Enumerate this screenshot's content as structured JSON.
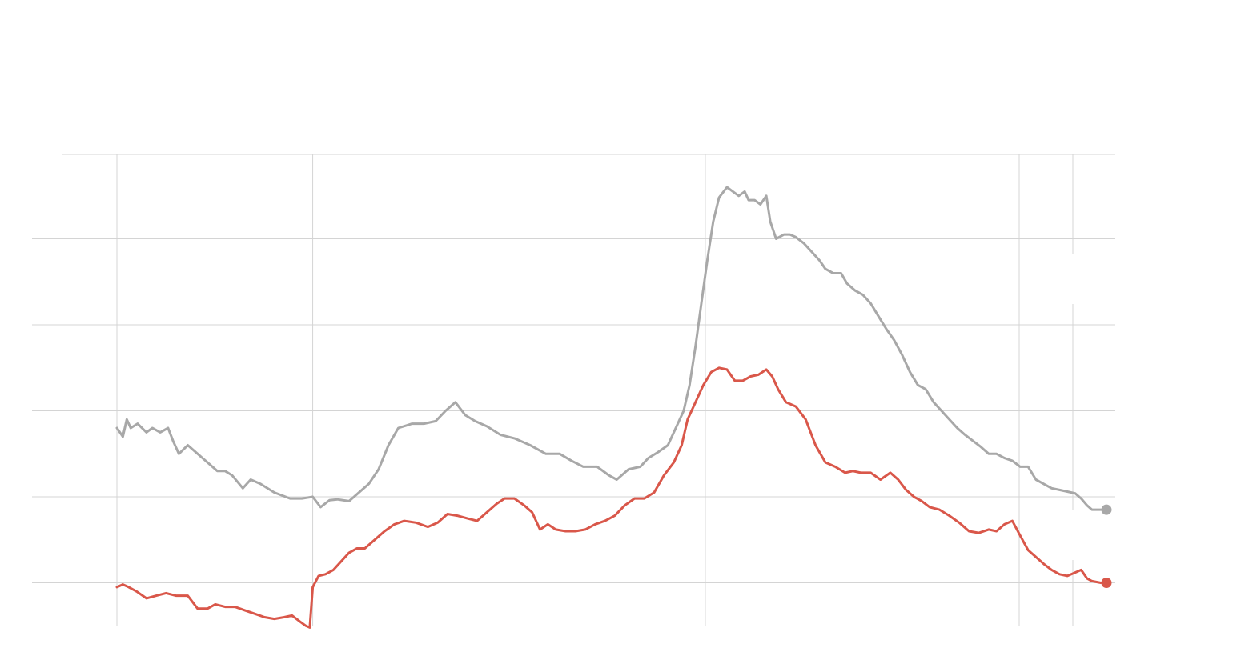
{
  "chart_data": {
    "type": "line",
    "title": "",
    "xlabel": "",
    "ylabel": "",
    "x_range": [
      0,
      1
    ],
    "ylim": [
      0,
      6
    ],
    "y_gridlines": [
      1,
      2,
      3,
      4,
      5
    ],
    "x_gridlines": [
      0.0,
      0.199,
      0.598,
      0.917
    ],
    "grid": true,
    "legend": "none",
    "colors": {
      "series_gray": "#a8a8a8",
      "series_red": "#d9574a",
      "gridline": "#d4d4d4",
      "background": "#ffffff"
    },
    "series": [
      {
        "color": "#a8a8a8",
        "end_marker": true,
        "points": [
          [
            0.0,
            2.8
          ],
          [
            0.006,
            2.7
          ],
          [
            0.01,
            2.9
          ],
          [
            0.014,
            2.8
          ],
          [
            0.021,
            2.85
          ],
          [
            0.03,
            2.75
          ],
          [
            0.036,
            2.8
          ],
          [
            0.044,
            2.75
          ],
          [
            0.052,
            2.8
          ],
          [
            0.057,
            2.65
          ],
          [
            0.063,
            2.5
          ],
          [
            0.072,
            2.6
          ],
          [
            0.082,
            2.5
          ],
          [
            0.092,
            2.4
          ],
          [
            0.102,
            2.3
          ],
          [
            0.11,
            2.3
          ],
          [
            0.117,
            2.25
          ],
          [
            0.128,
            2.1
          ],
          [
            0.136,
            2.2
          ],
          [
            0.146,
            2.15
          ],
          [
            0.16,
            2.05
          ],
          [
            0.176,
            1.98
          ],
          [
            0.188,
            1.98
          ],
          [
            0.199,
            2.0
          ],
          [
            0.207,
            1.88
          ],
          [
            0.216,
            1.96
          ],
          [
            0.224,
            1.97
          ],
          [
            0.236,
            1.95
          ],
          [
            0.246,
            2.05
          ],
          [
            0.256,
            2.15
          ],
          [
            0.266,
            2.32
          ],
          [
            0.276,
            2.6
          ],
          [
            0.286,
            2.8
          ],
          [
            0.3,
            2.85
          ],
          [
            0.312,
            2.85
          ],
          [
            0.324,
            2.88
          ],
          [
            0.334,
            3.0
          ],
          [
            0.344,
            3.1
          ],
          [
            0.354,
            2.95
          ],
          [
            0.364,
            2.88
          ],
          [
            0.376,
            2.82
          ],
          [
            0.39,
            2.72
          ],
          [
            0.404,
            2.68
          ],
          [
            0.42,
            2.6
          ],
          [
            0.436,
            2.5
          ],
          [
            0.45,
            2.5
          ],
          [
            0.462,
            2.42
          ],
          [
            0.474,
            2.35
          ],
          [
            0.488,
            2.35
          ],
          [
            0.5,
            2.25
          ],
          [
            0.508,
            2.2
          ],
          [
            0.52,
            2.32
          ],
          [
            0.532,
            2.35
          ],
          [
            0.54,
            2.45
          ],
          [
            0.55,
            2.52
          ],
          [
            0.56,
            2.6
          ],
          [
            0.568,
            2.8
          ],
          [
            0.576,
            3.0
          ],
          [
            0.582,
            3.3
          ],
          [
            0.588,
            3.75
          ],
          [
            0.594,
            4.25
          ],
          [
            0.6,
            4.75
          ],
          [
            0.606,
            5.2
          ],
          [
            0.612,
            5.48
          ],
          [
            0.62,
            5.6
          ],
          [
            0.626,
            5.55
          ],
          [
            0.632,
            5.5
          ],
          [
            0.638,
            5.55
          ],
          [
            0.642,
            5.45
          ],
          [
            0.648,
            5.45
          ],
          [
            0.654,
            5.4
          ],
          [
            0.66,
            5.5
          ],
          [
            0.664,
            5.2
          ],
          [
            0.67,
            5.0
          ],
          [
            0.678,
            5.05
          ],
          [
            0.684,
            5.05
          ],
          [
            0.69,
            5.02
          ],
          [
            0.698,
            4.95
          ],
          [
            0.706,
            4.85
          ],
          [
            0.714,
            4.75
          ],
          [
            0.72,
            4.65
          ],
          [
            0.728,
            4.6
          ],
          [
            0.736,
            4.6
          ],
          [
            0.742,
            4.48
          ],
          [
            0.75,
            4.4
          ],
          [
            0.758,
            4.35
          ],
          [
            0.766,
            4.25
          ],
          [
            0.774,
            4.1
          ],
          [
            0.782,
            3.95
          ],
          [
            0.79,
            3.82
          ],
          [
            0.798,
            3.65
          ],
          [
            0.806,
            3.45
          ],
          [
            0.814,
            3.3
          ],
          [
            0.822,
            3.25
          ],
          [
            0.83,
            3.1
          ],
          [
            0.838,
            3.0
          ],
          [
            0.846,
            2.9
          ],
          [
            0.854,
            2.8
          ],
          [
            0.862,
            2.72
          ],
          [
            0.87,
            2.65
          ],
          [
            0.878,
            2.58
          ],
          [
            0.886,
            2.5
          ],
          [
            0.894,
            2.5
          ],
          [
            0.902,
            2.45
          ],
          [
            0.91,
            2.42
          ],
          [
            0.918,
            2.35
          ],
          [
            0.926,
            2.35
          ],
          [
            0.934,
            2.2
          ],
          [
            0.942,
            2.15
          ],
          [
            0.95,
            2.1
          ],
          [
            0.958,
            2.08
          ],
          [
            0.966,
            2.06
          ],
          [
            0.974,
            2.04
          ],
          [
            0.98,
            1.98
          ],
          [
            0.986,
            1.9
          ],
          [
            0.991,
            1.85
          ],
          [
            1.0,
            1.85
          ]
        ]
      },
      {
        "color": "#d9574a",
        "end_marker": true,
        "points": [
          [
            0.0,
            0.95
          ],
          [
            0.006,
            0.98
          ],
          [
            0.012,
            0.95
          ],
          [
            0.02,
            0.9
          ],
          [
            0.03,
            0.82
          ],
          [
            0.04,
            0.85
          ],
          [
            0.05,
            0.88
          ],
          [
            0.06,
            0.85
          ],
          [
            0.072,
            0.85
          ],
          [
            0.082,
            0.7
          ],
          [
            0.092,
            0.7
          ],
          [
            0.1,
            0.75
          ],
          [
            0.11,
            0.72
          ],
          [
            0.12,
            0.72
          ],
          [
            0.13,
            0.68
          ],
          [
            0.14,
            0.64
          ],
          [
            0.15,
            0.6
          ],
          [
            0.16,
            0.58
          ],
          [
            0.17,
            0.6
          ],
          [
            0.178,
            0.62
          ],
          [
            0.186,
            0.55
          ],
          [
            0.192,
            0.5
          ],
          [
            0.196,
            0.48
          ],
          [
            0.199,
            0.95
          ],
          [
            0.205,
            1.08
          ],
          [
            0.212,
            1.1
          ],
          [
            0.22,
            1.15
          ],
          [
            0.228,
            1.25
          ],
          [
            0.236,
            1.35
          ],
          [
            0.244,
            1.4
          ],
          [
            0.252,
            1.4
          ],
          [
            0.262,
            1.5
          ],
          [
            0.272,
            1.6
          ],
          [
            0.282,
            1.68
          ],
          [
            0.292,
            1.72
          ],
          [
            0.304,
            1.7
          ],
          [
            0.316,
            1.65
          ],
          [
            0.326,
            1.7
          ],
          [
            0.336,
            1.8
          ],
          [
            0.346,
            1.78
          ],
          [
            0.356,
            1.75
          ],
          [
            0.366,
            1.72
          ],
          [
            0.376,
            1.82
          ],
          [
            0.386,
            1.92
          ],
          [
            0.394,
            1.98
          ],
          [
            0.404,
            1.98
          ],
          [
            0.414,
            1.9
          ],
          [
            0.422,
            1.82
          ],
          [
            0.43,
            1.62
          ],
          [
            0.438,
            1.68
          ],
          [
            0.446,
            1.62
          ],
          [
            0.456,
            1.6
          ],
          [
            0.466,
            1.6
          ],
          [
            0.476,
            1.62
          ],
          [
            0.486,
            1.68
          ],
          [
            0.496,
            1.72
          ],
          [
            0.506,
            1.78
          ],
          [
            0.516,
            1.9
          ],
          [
            0.526,
            1.98
          ],
          [
            0.536,
            1.98
          ],
          [
            0.546,
            2.05
          ],
          [
            0.556,
            2.25
          ],
          [
            0.566,
            2.4
          ],
          [
            0.574,
            2.6
          ],
          [
            0.58,
            2.9
          ],
          [
            0.588,
            3.1
          ],
          [
            0.596,
            3.3
          ],
          [
            0.604,
            3.45
          ],
          [
            0.612,
            3.5
          ],
          [
            0.62,
            3.48
          ],
          [
            0.628,
            3.35
          ],
          [
            0.636,
            3.35
          ],
          [
            0.644,
            3.4
          ],
          [
            0.652,
            3.42
          ],
          [
            0.66,
            3.48
          ],
          [
            0.666,
            3.4
          ],
          [
            0.672,
            3.25
          ],
          [
            0.68,
            3.1
          ],
          [
            0.69,
            3.05
          ],
          [
            0.7,
            2.9
          ],
          [
            0.71,
            2.6
          ],
          [
            0.72,
            2.4
          ],
          [
            0.73,
            2.35
          ],
          [
            0.74,
            2.28
          ],
          [
            0.748,
            2.3
          ],
          [
            0.756,
            2.28
          ],
          [
            0.766,
            2.28
          ],
          [
            0.776,
            2.2
          ],
          [
            0.786,
            2.28
          ],
          [
            0.794,
            2.2
          ],
          [
            0.802,
            2.08
          ],
          [
            0.81,
            2.0
          ],
          [
            0.818,
            1.95
          ],
          [
            0.826,
            1.88
          ],
          [
            0.836,
            1.85
          ],
          [
            0.846,
            1.78
          ],
          [
            0.856,
            1.7
          ],
          [
            0.866,
            1.6
          ],
          [
            0.876,
            1.58
          ],
          [
            0.886,
            1.62
          ],
          [
            0.894,
            1.6
          ],
          [
            0.902,
            1.68
          ],
          [
            0.91,
            1.72
          ],
          [
            0.918,
            1.55
          ],
          [
            0.926,
            1.38
          ],
          [
            0.934,
            1.3
          ],
          [
            0.942,
            1.22
          ],
          [
            0.95,
            1.15
          ],
          [
            0.958,
            1.1
          ],
          [
            0.966,
            1.08
          ],
          [
            0.974,
            1.12
          ],
          [
            0.98,
            1.15
          ],
          [
            0.986,
            1.05
          ],
          [
            0.991,
            1.02
          ],
          [
            1.0,
            1.0
          ]
        ]
      }
    ]
  }
}
